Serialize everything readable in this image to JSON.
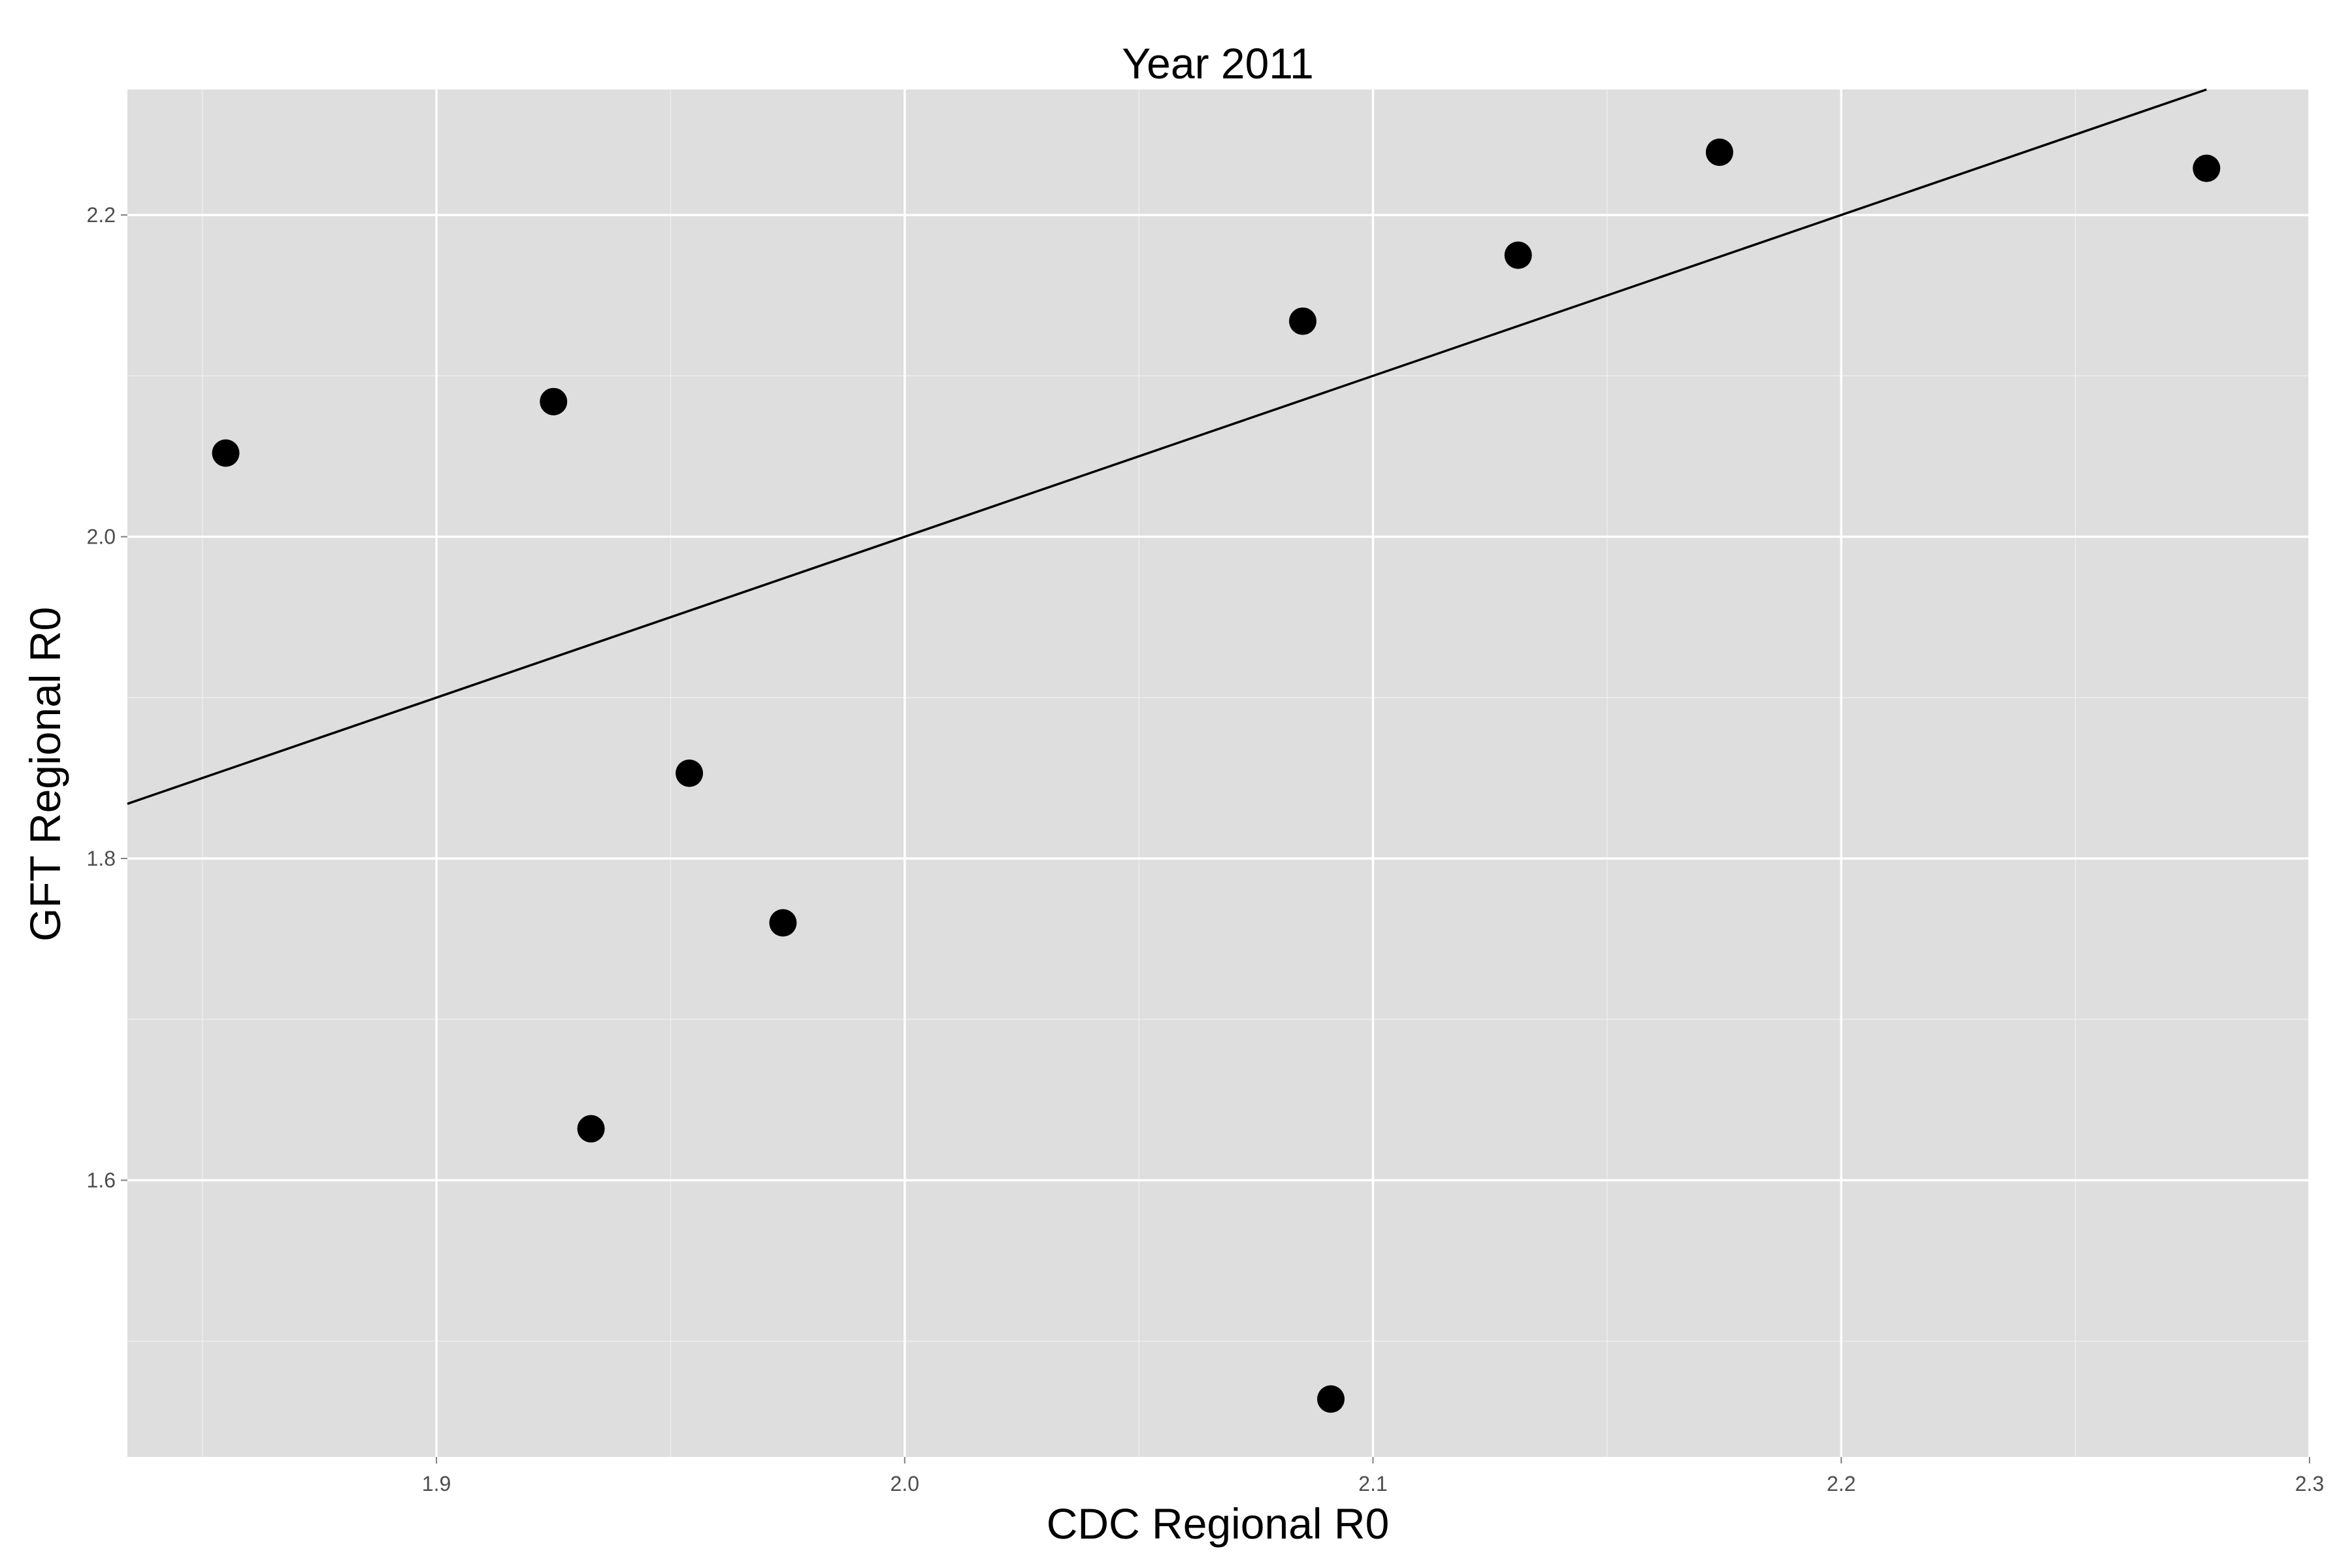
{
  "chart_data": {
    "type": "scatter",
    "title": "Year 2011",
    "xlabel": "CDC Regional R0",
    "ylabel": "GFT Regional R0",
    "xlim": [
      1.834,
      2.3
    ],
    "ylim": [
      1.428,
      2.278
    ],
    "x_ticks": [
      1.9,
      2.0,
      2.1,
      2.2,
      2.3
    ],
    "x_tick_labels": [
      "1.9",
      "2.0",
      "2.1",
      "2.2",
      "2.3"
    ],
    "y_ticks": [
      1.6,
      1.8,
      2.0,
      2.2
    ],
    "y_tick_labels": [
      "1.6",
      "1.8",
      "2.0",
      "2.2"
    ],
    "grid": true,
    "panel_background": "#dedede",
    "grid_color": "#ffffff",
    "point_color": "#000000",
    "points": [
      {
        "x": 1.855,
        "y": 2.052
      },
      {
        "x": 1.925,
        "y": 2.084
      },
      {
        "x": 1.933,
        "y": 1.632
      },
      {
        "x": 1.954,
        "y": 1.853
      },
      {
        "x": 1.974,
        "y": 1.76
      },
      {
        "x": 2.085,
        "y": 2.134
      },
      {
        "x": 2.091,
        "y": 1.464
      },
      {
        "x": 2.131,
        "y": 2.175
      },
      {
        "x": 2.174,
        "y": 2.239
      },
      {
        "x": 2.278,
        "y": 2.229
      }
    ],
    "reference_line": {
      "slope": 1,
      "intercept": 0
    }
  }
}
